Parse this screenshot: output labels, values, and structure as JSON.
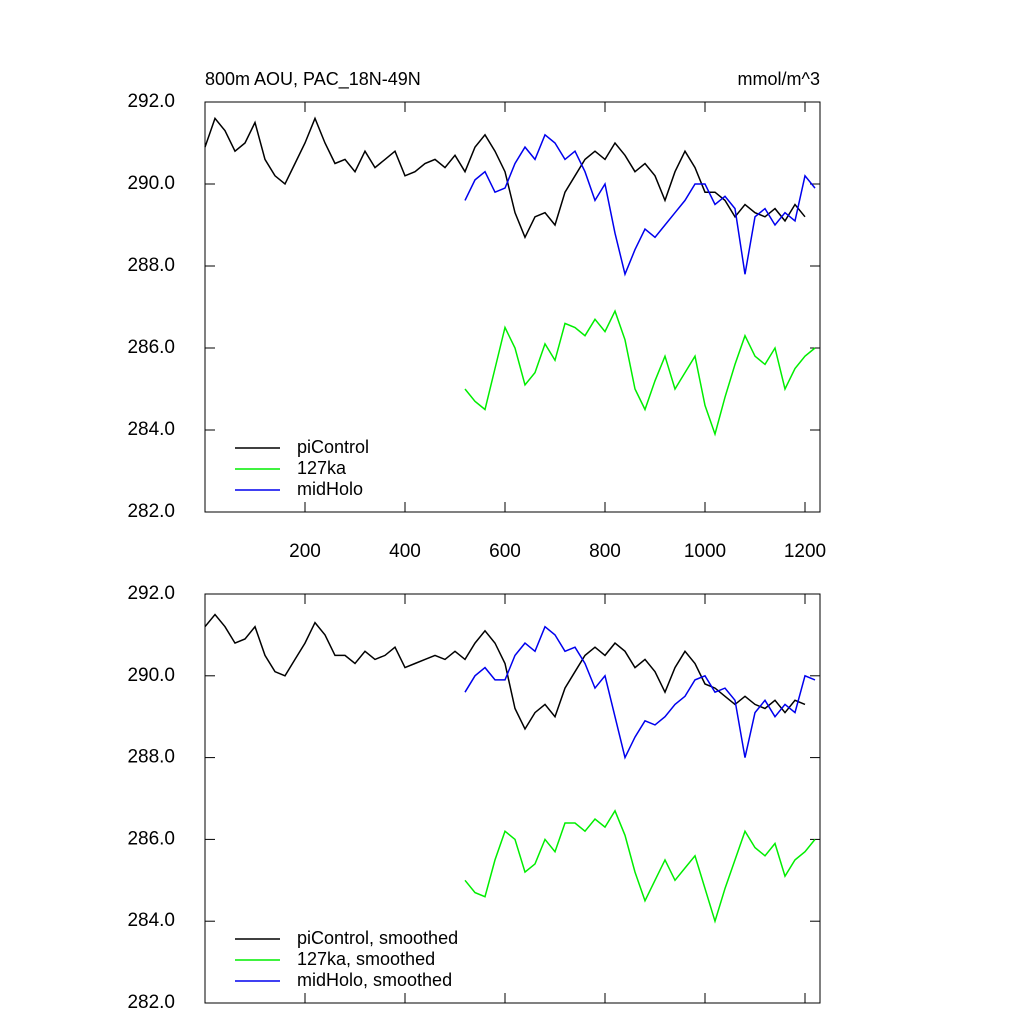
{
  "chart_data": [
    {
      "type": "line",
      "title": "800m AOU, PAC_18N-49N",
      "units": "mmol/m^3",
      "x": [
        0,
        20,
        40,
        60,
        80,
        100,
        120,
        140,
        160,
        180,
        200,
        220,
        240,
        260,
        280,
        300,
        320,
        340,
        360,
        380,
        400,
        420,
        440,
        460,
        480,
        500,
        520,
        540,
        560,
        580,
        600,
        620,
        640,
        660,
        680,
        700,
        720,
        740,
        760,
        780,
        800,
        820,
        840,
        860,
        880,
        900,
        920,
        940,
        960,
        980,
        1000,
        1020,
        1040,
        1060,
        1080,
        1100,
        1120,
        1140,
        1160,
        1180,
        1200,
        1220
      ],
      "series": [
        {
          "name": "piControl",
          "color": "#000000",
          "values": [
            290.9,
            291.6,
            291.3,
            290.8,
            291.0,
            291.5,
            290.6,
            290.2,
            290.0,
            290.5,
            291.0,
            291.6,
            291.0,
            290.5,
            290.6,
            290.3,
            290.8,
            290.4,
            290.6,
            290.8,
            290.2,
            290.3,
            290.5,
            290.6,
            290.4,
            290.7,
            290.3,
            290.9,
            291.2,
            290.8,
            290.3,
            289.3,
            288.7,
            289.2,
            289.3,
            289.0,
            289.8,
            290.2,
            290.6,
            290.8,
            290.6,
            291.0,
            290.7,
            290.3,
            290.5,
            290.2,
            289.6,
            290.3,
            290.8,
            290.4,
            289.8,
            289.8,
            289.6,
            289.2,
            289.5,
            289.3,
            289.2,
            289.4,
            289.1,
            289.5,
            289.2,
            null
          ]
        },
        {
          "name": "127ka",
          "color": "#00ee00",
          "values": [
            null,
            null,
            null,
            null,
            null,
            null,
            null,
            null,
            null,
            null,
            null,
            null,
            null,
            null,
            null,
            null,
            null,
            null,
            null,
            null,
            null,
            null,
            null,
            null,
            null,
            null,
            285.0,
            284.7,
            284.5,
            285.5,
            286.5,
            286.0,
            285.1,
            285.4,
            286.1,
            285.7,
            286.6,
            286.5,
            286.3,
            286.7,
            286.4,
            286.9,
            286.2,
            285.0,
            284.5,
            285.2,
            285.8,
            285.0,
            285.4,
            285.8,
            284.6,
            283.9,
            284.8,
            285.6,
            286.3,
            285.8,
            285.6,
            286.0,
            285.0,
            285.5,
            285.8,
            286.0
          ]
        },
        {
          "name": "midHolo",
          "color": "#0000ee",
          "values": [
            null,
            null,
            null,
            null,
            null,
            null,
            null,
            null,
            null,
            null,
            null,
            null,
            null,
            null,
            null,
            null,
            null,
            null,
            null,
            null,
            null,
            null,
            null,
            null,
            null,
            null,
            289.6,
            290.1,
            290.3,
            289.8,
            289.9,
            290.5,
            290.9,
            290.6,
            291.2,
            291.0,
            290.6,
            290.8,
            290.3,
            289.6,
            290.0,
            288.8,
            287.8,
            288.4,
            288.9,
            288.7,
            289.0,
            289.3,
            289.6,
            290.0,
            290.0,
            289.5,
            289.7,
            289.4,
            287.8,
            289.2,
            289.4,
            289.0,
            289.3,
            289.1,
            290.2,
            289.9
          ]
        }
      ],
      "xlim": [
        0,
        1230
      ],
      "xticks": [
        200,
        400,
        600,
        800,
        1000,
        1200
      ],
      "ylim": [
        282,
        292
      ],
      "yticks": [
        {
          "value": 282,
          "label": "282.0"
        },
        {
          "value": 284,
          "label": "284.0"
        },
        {
          "value": 286,
          "label": "286.0"
        },
        {
          "value": 288,
          "label": "288.0"
        },
        {
          "value": 290,
          "label": "290.0"
        },
        {
          "value": 292,
          "label": "292.0"
        }
      ],
      "legend": "bottom-left"
    },
    {
      "type": "line",
      "x": [
        0,
        20,
        40,
        60,
        80,
        100,
        120,
        140,
        160,
        180,
        200,
        220,
        240,
        260,
        280,
        300,
        320,
        340,
        360,
        380,
        400,
        420,
        440,
        460,
        480,
        500,
        520,
        540,
        560,
        580,
        600,
        620,
        640,
        660,
        680,
        700,
        720,
        740,
        760,
        780,
        800,
        820,
        840,
        860,
        880,
        900,
        920,
        940,
        960,
        980,
        1000,
        1020,
        1040,
        1060,
        1080,
        1100,
        1120,
        1140,
        1160,
        1180,
        1200,
        1220
      ],
      "series": [
        {
          "name": "piControl, smoothed",
          "color": "#000000",
          "values": [
            291.2,
            291.5,
            291.2,
            290.8,
            290.9,
            291.2,
            290.5,
            290.1,
            290.0,
            290.4,
            290.8,
            291.3,
            291.0,
            290.5,
            290.5,
            290.3,
            290.6,
            290.4,
            290.5,
            290.7,
            290.2,
            290.3,
            290.4,
            290.5,
            290.4,
            290.6,
            290.4,
            290.8,
            291.1,
            290.8,
            290.3,
            289.2,
            288.7,
            289.1,
            289.3,
            289.0,
            289.7,
            290.1,
            290.5,
            290.7,
            290.5,
            290.8,
            290.6,
            290.2,
            290.4,
            290.1,
            289.6,
            290.2,
            290.6,
            290.3,
            289.8,
            289.7,
            289.5,
            289.3,
            289.5,
            289.3,
            289.2,
            289.4,
            289.1,
            289.4,
            289.3,
            null
          ]
        },
        {
          "name": "127ka, smoothed",
          "color": "#00ee00",
          "values": [
            null,
            null,
            null,
            null,
            null,
            null,
            null,
            null,
            null,
            null,
            null,
            null,
            null,
            null,
            null,
            null,
            null,
            null,
            null,
            null,
            null,
            null,
            null,
            null,
            null,
            null,
            285.0,
            284.7,
            284.6,
            285.5,
            286.2,
            286.0,
            285.2,
            285.4,
            286.0,
            285.7,
            286.4,
            286.4,
            286.2,
            286.5,
            286.3,
            286.7,
            286.1,
            285.2,
            284.5,
            285.0,
            285.5,
            285.0,
            285.3,
            285.6,
            284.8,
            284.0,
            284.8,
            285.5,
            286.2,
            285.8,
            285.6,
            285.9,
            285.1,
            285.5,
            285.7,
            286.0
          ]
        },
        {
          "name": "midHolo, smoothed",
          "color": "#0000ee",
          "values": [
            null,
            null,
            null,
            null,
            null,
            null,
            null,
            null,
            null,
            null,
            null,
            null,
            null,
            null,
            null,
            null,
            null,
            null,
            null,
            null,
            null,
            null,
            null,
            null,
            null,
            null,
            289.6,
            290.0,
            290.2,
            289.9,
            289.9,
            290.5,
            290.8,
            290.6,
            291.2,
            291.0,
            290.6,
            290.7,
            290.3,
            289.7,
            290.0,
            289.0,
            288.0,
            288.5,
            288.9,
            288.8,
            289.0,
            289.3,
            289.5,
            289.9,
            290.0,
            289.6,
            289.7,
            289.4,
            288.0,
            289.1,
            289.4,
            289.0,
            289.3,
            289.1,
            290.0,
            289.9
          ]
        }
      ],
      "xlim": [
        0,
        1230
      ],
      "xticks": [
        200,
        400,
        600,
        800,
        1000,
        1200
      ],
      "ylim": [
        282,
        292
      ],
      "yticks": [
        {
          "value": 282,
          "label": "282.0"
        },
        {
          "value": 284,
          "label": "284.0"
        },
        {
          "value": 286,
          "label": "286.0"
        },
        {
          "value": 288,
          "label": "288.0"
        },
        {
          "value": 290,
          "label": "290.0"
        },
        {
          "value": 292,
          "label": "292.0"
        }
      ],
      "legend": "bottom-left"
    }
  ]
}
